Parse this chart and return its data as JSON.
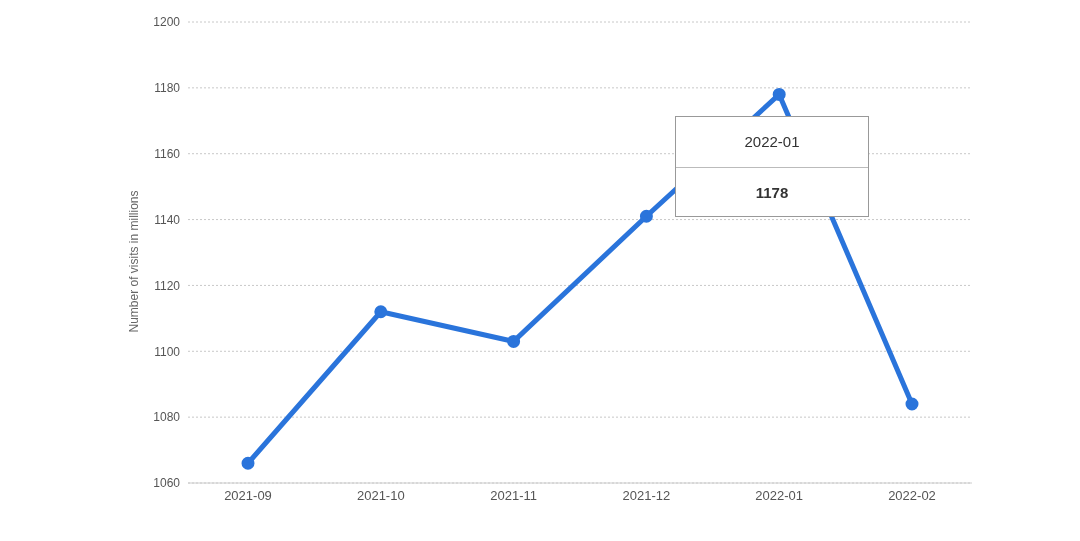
{
  "chart_data": {
    "type": "line",
    "ylabel": "Number of visits in millions",
    "categories": [
      "2021-09",
      "2021-10",
      "2021-11",
      "2021-12",
      "2022-01",
      "2022-02"
    ],
    "series": [
      {
        "color": "#2a74db",
        "values": [
          1066,
          1112,
          1103,
          1141,
          1178,
          1084
        ]
      }
    ],
    "ylim": [
      1060,
      1200
    ],
    "yticks": [
      1060,
      1080,
      1100,
      1120,
      1140,
      1160,
      1180,
      1200
    ],
    "grid": "y",
    "marker": "circle",
    "legend": false,
    "annotations": [
      "2022-01",
      "1178"
    ]
  }
}
